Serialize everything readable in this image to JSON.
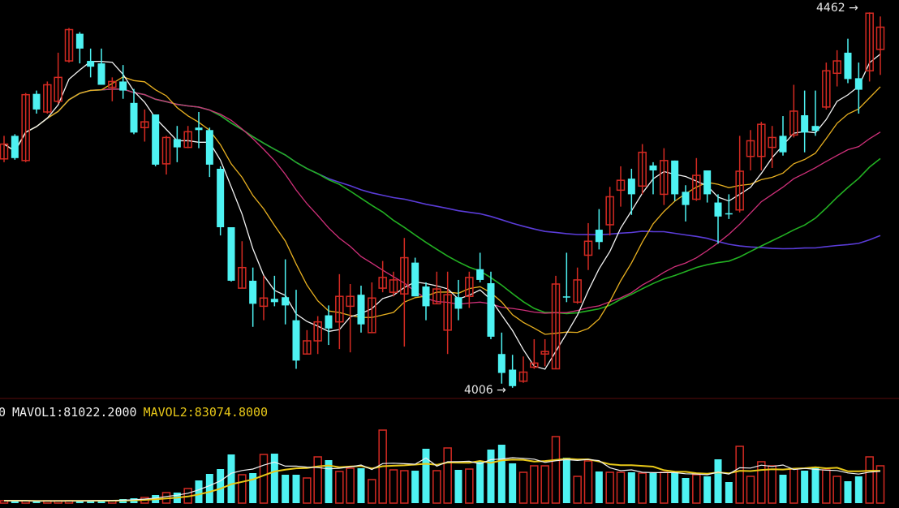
{
  "chart_data": [
    {
      "type": "candlestick",
      "title": "",
      "ylim": [
        3994,
        4477
      ],
      "annotations": {
        "high_label": "4462",
        "low_label": "4006",
        "arrow": "→"
      },
      "colors": {
        "up": "#d42a22",
        "down": "#4ef2f2",
        "ma5": "#f2f2f2",
        "ma10": "#e8b020",
        "ma20": "#d0307a",
        "ma30": "#22b022",
        "ma60": "#5a3cd8"
      },
      "moving_averages": [
        5,
        10,
        20,
        30,
        60
      ],
      "ohlc": [
        [
          4284,
          4312,
          4280,
          4302
        ],
        [
          4312,
          4314,
          4283,
          4285
        ],
        [
          4282,
          4364,
          4280,
          4362
        ],
        [
          4363,
          4367,
          4339,
          4344
        ],
        [
          4341,
          4378,
          4339,
          4374
        ],
        [
          4354,
          4413,
          4351,
          4383
        ],
        [
          4403,
          4443,
          4401,
          4441
        ],
        [
          4436,
          4438,
          4400,
          4418
        ],
        [
          4403,
          4418,
          4383,
          4396
        ],
        [
          4400,
          4418,
          4374,
          4374
        ],
        [
          4371,
          4383,
          4354,
          4378
        ],
        [
          4378,
          4398,
          4357,
          4367
        ],
        [
          4352,
          4369,
          4314,
          4316
        ],
        [
          4322,
          4344,
          4305,
          4329
        ],
        [
          4338,
          4338,
          4275,
          4277
        ],
        [
          4278,
          4312,
          4265,
          4310
        ],
        [
          4308,
          4324,
          4280,
          4298
        ],
        [
          4298,
          4324,
          4297,
          4317
        ],
        [
          4322,
          4341,
          4297,
          4319
        ],
        [
          4319,
          4322,
          4262,
          4277
        ],
        [
          4272,
          4275,
          4191,
          4201
        ],
        [
          4201,
          4201,
          4135,
          4136
        ],
        [
          4127,
          4184,
          4127,
          4152
        ],
        [
          4136,
          4152,
          4080,
          4108
        ],
        [
          4105,
          4142,
          4088,
          4115
        ],
        [
          4114,
          4142,
          4105,
          4110
        ],
        [
          4116,
          4162,
          4083,
          4106
        ],
        [
          4088,
          4125,
          4029,
          4039
        ],
        [
          4047,
          4076,
          4047,
          4063
        ],
        [
          4063,
          4093,
          4047,
          4086
        ],
        [
          4094,
          4106,
          4058,
          4078
        ],
        [
          4086,
          4144,
          4053,
          4117
        ],
        [
          4105,
          4132,
          4049,
          4117
        ],
        [
          4119,
          4130,
          4073,
          4083
        ],
        [
          4073,
          4134,
          4073,
          4115
        ],
        [
          4127,
          4160,
          4122,
          4140
        ],
        [
          4122,
          4147,
          4117,
          4137
        ],
        [
          4120,
          4188,
          4056,
          4164
        ],
        [
          4158,
          4164,
          4117,
          4117
        ],
        [
          4129,
          4134,
          4088,
          4105
        ],
        [
          4108,
          4147,
          4108,
          4126
        ],
        [
          4076,
          4147,
          4047,
          4119
        ],
        [
          4116,
          4137,
          4088,
          4102
        ],
        [
          4117,
          4147,
          4103,
          4140
        ],
        [
          4150,
          4170,
          4134,
          4137
        ],
        [
          4133,
          4147,
          4065,
          4068
        ],
        [
          4047,
          4073,
          4011,
          4024
        ],
        [
          4028,
          4046,
          4006,
          4008
        ],
        [
          4014,
          4044,
          4012,
          4025
        ],
        [
          4031,
          4065,
          4029,
          4036
        ],
        [
          4047,
          4065,
          4032,
          4050
        ],
        [
          4029,
          4142,
          4029,
          4132
        ],
        [
          4117,
          4170,
          4110,
          4116
        ],
        [
          4110,
          4152,
          4108,
          4137
        ],
        [
          4167,
          4206,
          4149,
          4184
        ],
        [
          4198,
          4223,
          4174,
          4183
        ],
        [
          4204,
          4250,
          4191,
          4238
        ],
        [
          4246,
          4275,
          4226,
          4258
        ],
        [
          4260,
          4272,
          4216,
          4241
        ],
        [
          4251,
          4302,
          4241,
          4292
        ],
        [
          4276,
          4280,
          4241,
          4270
        ],
        [
          4241,
          4297,
          4228,
          4282
        ],
        [
          4282,
          4282,
          4233,
          4241
        ],
        [
          4244,
          4252,
          4208,
          4228
        ],
        [
          4235,
          4285,
          4233,
          4264
        ],
        [
          4270,
          4270,
          4231,
          4241
        ],
        [
          4231,
          4241,
          4181,
          4214
        ],
        [
          4218,
          4241,
          4211,
          4217
        ],
        [
          4222,
          4312,
          4219,
          4269
        ],
        [
          4287,
          4319,
          4270,
          4306
        ],
        [
          4287,
          4329,
          4270,
          4326
        ],
        [
          4298,
          4324,
          4273,
          4310
        ],
        [
          4312,
          4336,
          4288,
          4292
        ],
        [
          4313,
          4374,
          4310,
          4342
        ],
        [
          4337,
          4367,
          4292,
          4316
        ],
        [
          4324,
          4367,
          4312,
          4318
        ],
        [
          4347,
          4401,
          4344,
          4391
        ],
        [
          4388,
          4416,
          4372,
          4403
        ],
        [
          4413,
          4430,
          4376,
          4381
        ],
        [
          4382,
          4401,
          4339,
          4368
        ],
        [
          4391,
          4462,
          4378,
          4461
        ],
        [
          4417,
          4457,
          4386,
          4444
        ]
      ]
    },
    {
      "type": "bar",
      "title": "",
      "legend": {
        "prefix": "0",
        "mavol1": "MAVOL1:81022.2000",
        "mavol2": "MAVOL2:83074.8000"
      },
      "colors": {
        "mavol1": "#f0f0f0",
        "mavol2": "#e8c818"
      },
      "moving_averages": [
        5,
        10
      ],
      "volume": [
        6000,
        6000,
        6000,
        4000,
        6000,
        6000,
        6000,
        6000,
        6000,
        8000,
        6000,
        10000,
        12000,
        14000,
        20000,
        26000,
        26000,
        36000,
        56000,
        72000,
        84000,
        120000,
        70000,
        74000,
        120000,
        122000,
        70000,
        70000,
        62000,
        114000,
        106000,
        78000,
        86000,
        86000,
        58000,
        180000,
        82000,
        80000,
        80000,
        134000,
        80000,
        136000,
        82000,
        84000,
        102000,
        132000,
        144000,
        98000,
        76000,
        92000,
        92000,
        164000,
        112000,
        66000,
        104000,
        78000,
        76000,
        76000,
        76000,
        74000,
        74000,
        76000,
        76000,
        62000,
        70000,
        66000,
        108000,
        52000,
        140000,
        66000,
        102000,
        92000,
        70000,
        84000,
        80000,
        90000,
        82000,
        66000,
        54000,
        66000,
        114000,
        92000
      ]
    }
  ]
}
